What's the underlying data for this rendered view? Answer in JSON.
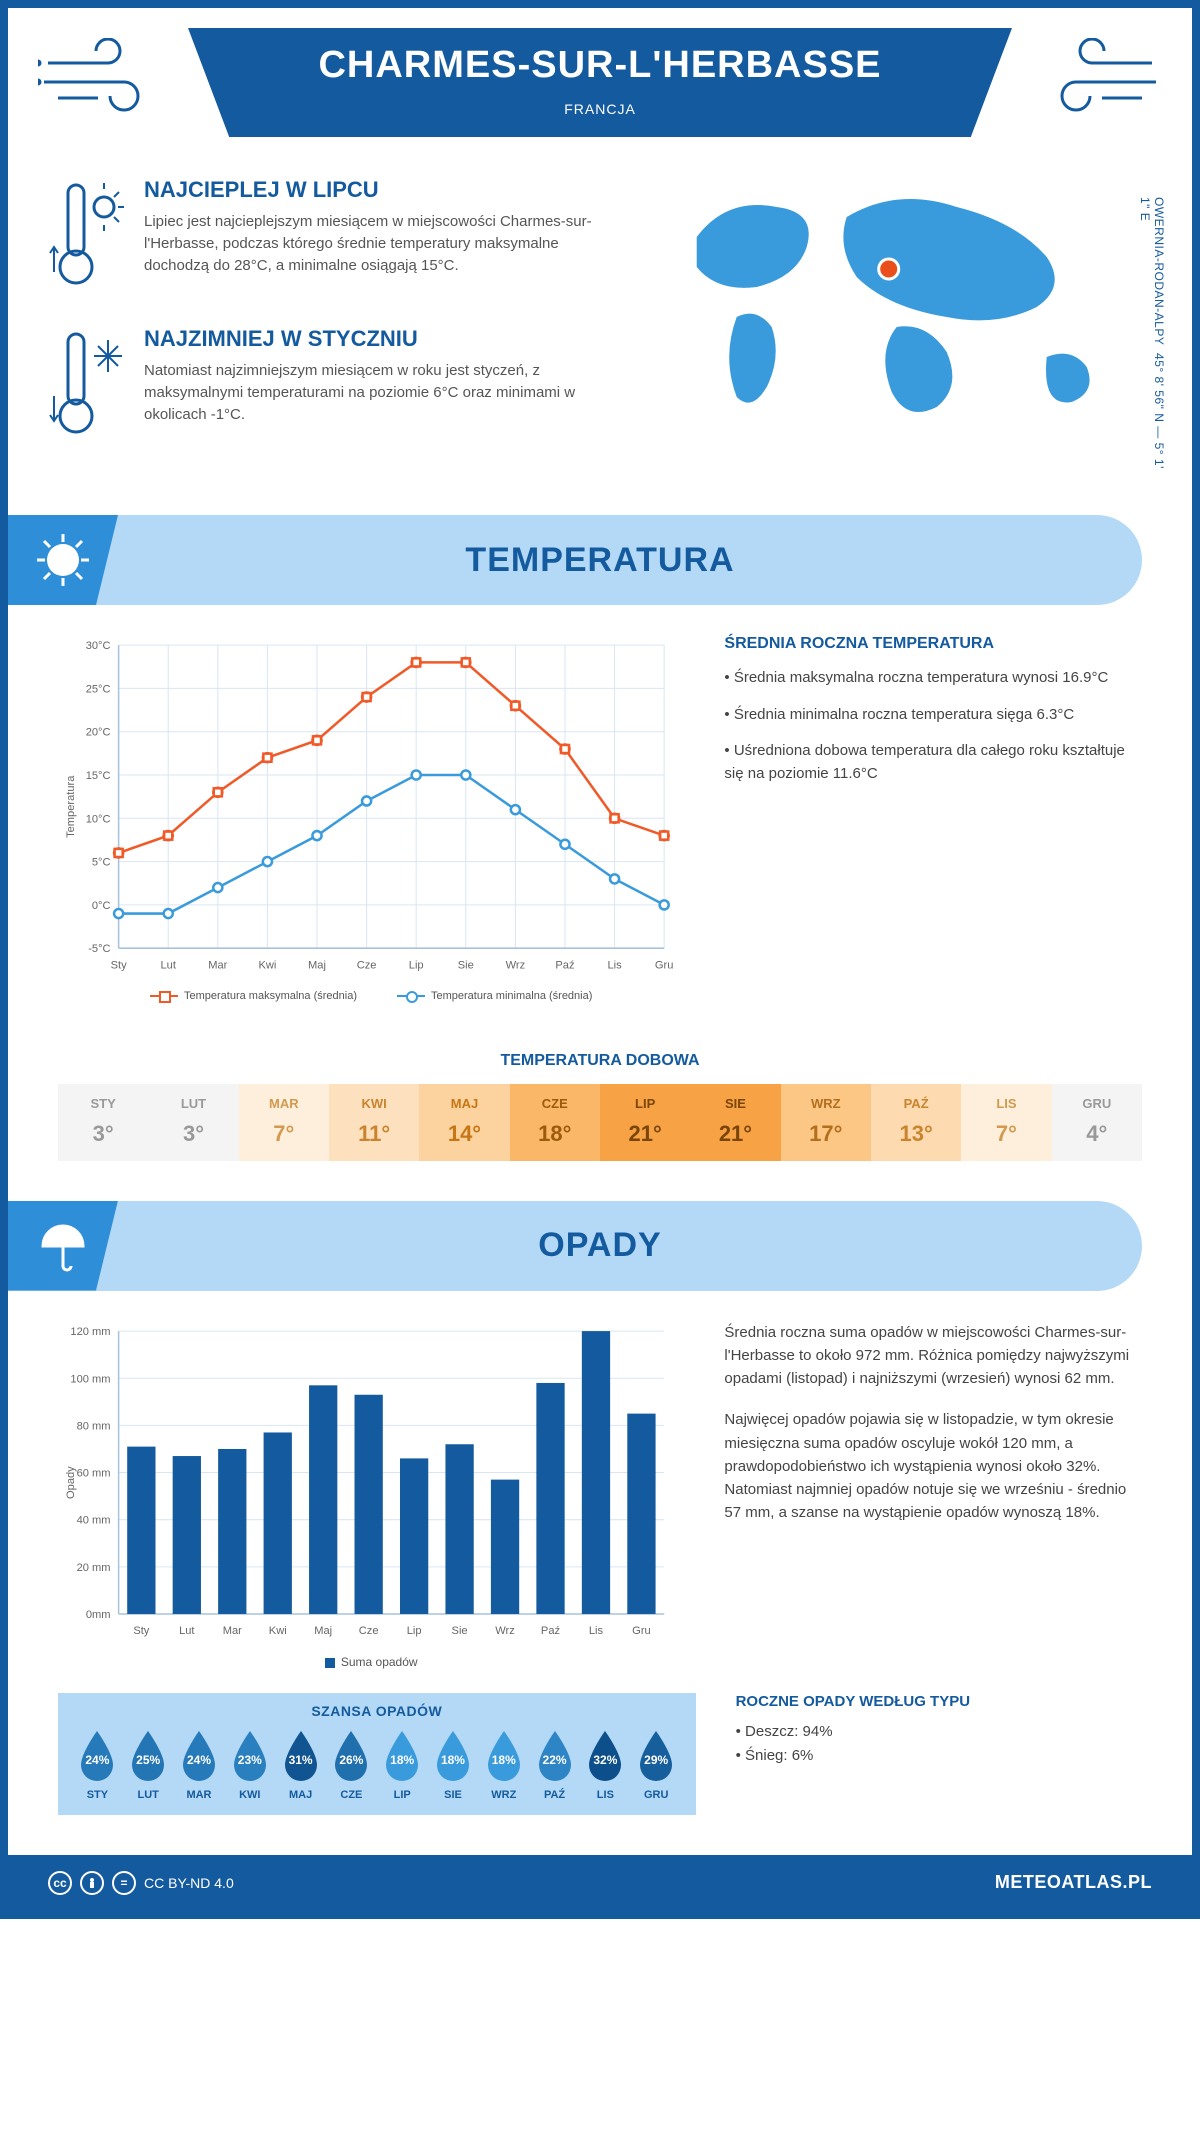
{
  "header": {
    "title": "CHARMES-SUR-L'HERBASSE",
    "subtitle": "FRANCJA",
    "coords": "45° 8' 56\" N — 5° 1' 1\" E",
    "region": "OWERNIA-RODAN-ALPY"
  },
  "facts": {
    "hot": {
      "title": "NAJCIEPLEJ W LIPCU",
      "body": "Lipiec jest najcieplejszym miesiącem w miejscowości Charmes-sur-l'Herbasse, podczas którego średnie temperatury maksymalne dochodzą do 28°C, a minimalne osiągają 15°C."
    },
    "cold": {
      "title": "NAJZIMNIEJ W STYCZNIU",
      "body": "Natomiast najzimniejszym miesiącem w roku jest styczeń, z maksymalnymi temperaturami na poziomie 6°C oraz minimami w okolicach -1°C."
    }
  },
  "months_short": [
    "Sty",
    "Lut",
    "Mar",
    "Kwi",
    "Maj",
    "Cze",
    "Lip",
    "Sie",
    "Wrz",
    "Paź",
    "Lis",
    "Gru"
  ],
  "months_upper": [
    "STY",
    "LUT",
    "MAR",
    "KWI",
    "MAJ",
    "CZE",
    "LIP",
    "SIE",
    "WRZ",
    "PAŹ",
    "LIS",
    "GRU"
  ],
  "temperature": {
    "section_title": "TEMPERATURA",
    "y_label": "Temperatura",
    "y_ticks": [
      "-5°C",
      "0°C",
      "5°C",
      "10°C",
      "15°C",
      "20°C",
      "25°C",
      "30°C"
    ],
    "ylim": [
      -5,
      30
    ],
    "max_series": [
      6,
      8,
      13,
      17,
      19,
      24,
      28,
      28,
      23,
      18,
      10,
      8
    ],
    "min_series": [
      -1,
      -1,
      2,
      5,
      8,
      12,
      15,
      15,
      11,
      7,
      3,
      0
    ],
    "colors": {
      "max": "#f05a28",
      "min": "#3a9bdc",
      "grid": "#d9e6f2",
      "axis": "#a8c4dd"
    },
    "legend_max": "Temperatura maksymalna (średnia)",
    "legend_min": "Temperatura minimalna (średnia)",
    "info_title": "ŚREDNIA ROCZNA TEMPERATURA",
    "info_points": [
      "• Średnia maksymalna roczna temperatura wynosi 16.9°C",
      "• Średnia minimalna roczna temperatura sięga 6.3°C",
      "• Uśredniona dobowa temperatura dla całego roku kształtuje się na poziomie 11.6°C"
    ]
  },
  "daily": {
    "title": "TEMPERATURA DOBOWA",
    "values": [
      "3°",
      "3°",
      "7°",
      "11°",
      "14°",
      "18°",
      "21°",
      "21°",
      "17°",
      "13°",
      "7°",
      "4°"
    ],
    "bg_colors": [
      "#f4f4f4",
      "#f4f4f4",
      "#fdefdc",
      "#fde1bf",
      "#fcd39f",
      "#fab768",
      "#f7a345",
      "#f7a345",
      "#fcc685",
      "#fddab0",
      "#fdefdc",
      "#f4f4f4"
    ],
    "text_colors": [
      "#999",
      "#999",
      "#d29a4f",
      "#c9842d",
      "#c77615",
      "#9b5a0c",
      "#7a4507",
      "#7a4507",
      "#b26f1c",
      "#c9842d",
      "#d29a4f",
      "#999"
    ]
  },
  "precipitation": {
    "section_title": "OPADY",
    "y_label": "Opady",
    "y_ticks": [
      "0mm",
      "20 mm",
      "40 mm",
      "60 mm",
      "80 mm",
      "100 mm",
      "120 mm"
    ],
    "ylim": [
      0,
      120
    ],
    "values": [
      71,
      67,
      70,
      77,
      97,
      93,
      66,
      72,
      57,
      98,
      120,
      85
    ],
    "bar_color": "#145a9e",
    "legend": "Suma opadów",
    "info1": "Średnia roczna suma opadów w miejscowości Charmes-sur-l'Herbasse to około 972 mm. Różnica pomiędzy najwyższymi opadami (listopad) i najniższymi (wrzesień) wynosi 62 mm.",
    "info2": "Najwięcej opadów pojawia się w listopadzie, w tym okresie miesięczna suma opadów oscyluje wokół 120 mm, a prawdopodobieństwo ich wystąpienia wynosi około 32%. Natomiast najmniej opadów notuje się we wrześniu - średnio 57 mm, a szanse na wystąpienie opadów wynoszą 18%.",
    "chance_title": "SZANSA OPADÓW",
    "chance_values": [
      "24%",
      "25%",
      "24%",
      "23%",
      "31%",
      "26%",
      "18%",
      "18%",
      "18%",
      "22%",
      "32%",
      "29%"
    ],
    "chance_nums": [
      24,
      25,
      24,
      23,
      31,
      26,
      18,
      18,
      18,
      22,
      32,
      29
    ],
    "drop_light": "#3a9bdc",
    "drop_dark": "#0d4f8b",
    "type_title": "ROCZNE OPADY WEDŁUG TYPU",
    "type_lines": [
      "• Deszcz: 94%",
      "• Śnieg: 6%"
    ]
  },
  "footer": {
    "license": "CC BY-ND 4.0",
    "brand": "METEOATLAS.PL"
  }
}
